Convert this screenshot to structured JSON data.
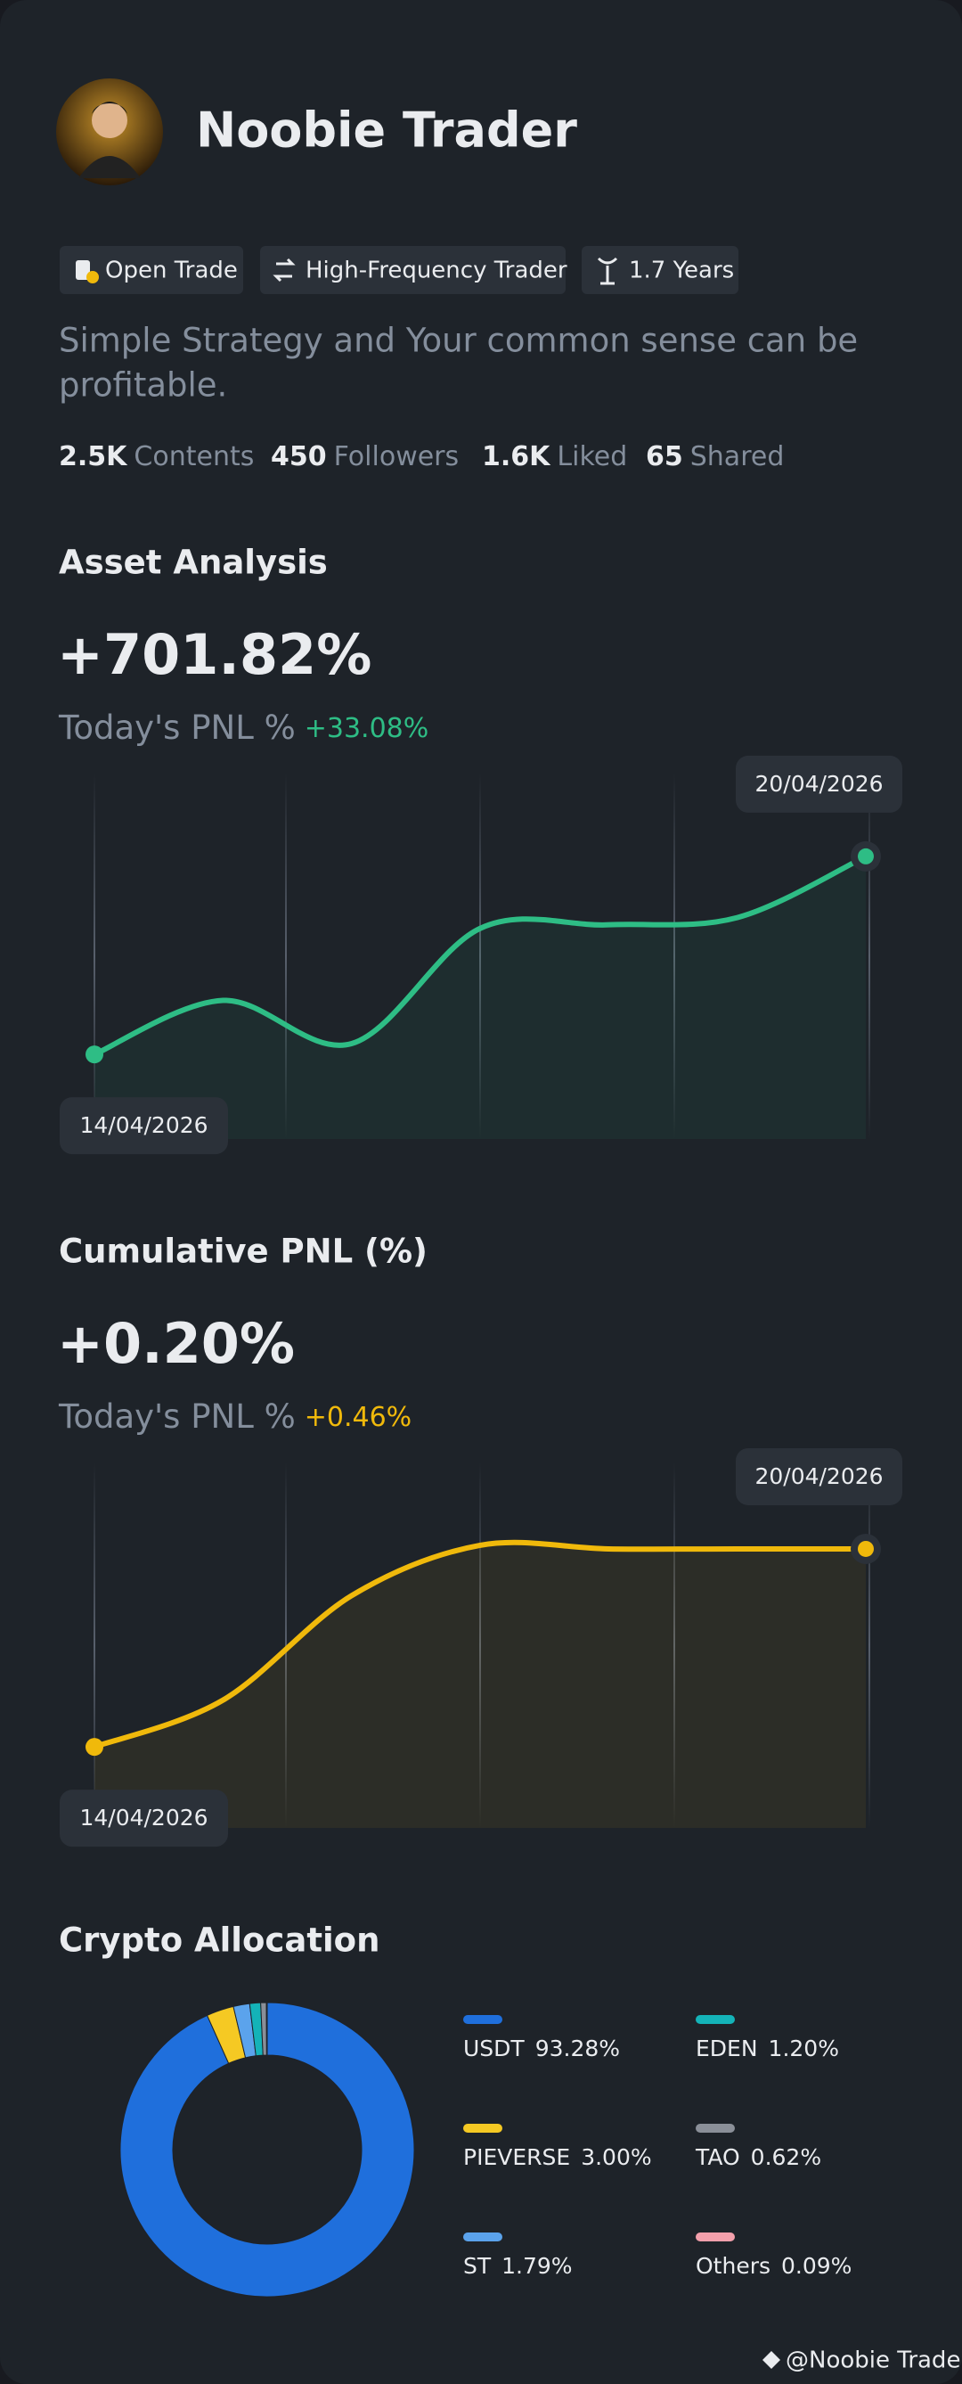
{
  "profile": {
    "name": "Noobie Trader",
    "tags": [
      "Open Trade",
      "High-Frequency Trader",
      "1.7 Years"
    ],
    "bio": [
      "Simple Strategy and Your common sense can be",
      "profitable."
    ],
    "stats": [
      {
        "value": "2.5K",
        "label": "Contents"
      },
      {
        "value": "450",
        "label": "Followers"
      },
      {
        "value": "1.6K",
        "label": "Liked"
      },
      {
        "value": "65",
        "label": "Shared"
      }
    ],
    "watermark": "@Noobie Trader"
  },
  "chart_data": [
    {
      "type": "line",
      "title": "Asset Analysis",
      "headline": "+701.82%",
      "subtitle": "Today's PNL %",
      "today": "+33.08%",
      "categories": [
        "14/04/2026",
        null,
        null,
        null,
        null,
        null,
        "20/04/2026"
      ],
      "values": [
        22,
        37,
        25,
        57,
        58,
        60,
        77
      ],
      "ylim": [
        0,
        100
      ],
      "color": "#2ebd85"
    },
    {
      "type": "line",
      "title": "Cumulative PNL (%)",
      "headline": "+0.20%",
      "subtitle": "Today's PNL %",
      "today": "+0.46%",
      "categories": [
        "14/04/2026",
        null,
        null,
        null,
        null,
        null,
        "20/04/2026"
      ],
      "values": [
        21,
        34,
        63,
        77,
        76,
        76,
        76
      ],
      "ylim": [
        0,
        100
      ],
      "color": "#f0b90b"
    },
    {
      "type": "pie",
      "title": "Crypto Allocation",
      "categories": [
        "USDT",
        "PIEVERSE",
        "ST",
        "EDEN",
        "TAO",
        "Others"
      ],
      "values": [
        93.28,
        3.0,
        1.79,
        1.2,
        0.62,
        0.09
      ],
      "value_labels": [
        "93.28%",
        "3.00%",
        "1.79%",
        "1.20%",
        "0.62%",
        "0.09%"
      ],
      "colors": [
        "#1f6fdc",
        "#f5c923",
        "#5ba3ec",
        "#14b3b8",
        "#8a8f98",
        "#f4a0ac"
      ]
    }
  ]
}
